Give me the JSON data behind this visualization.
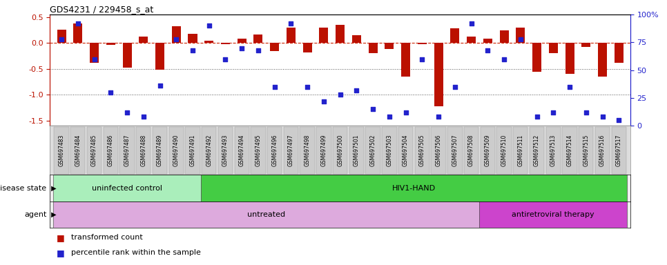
{
  "title": "GDS4231 / 229458_s_at",
  "samples": [
    "GSM697483",
    "GSM697484",
    "GSM697485",
    "GSM697486",
    "GSM697487",
    "GSM697488",
    "GSM697489",
    "GSM697490",
    "GSM697491",
    "GSM697492",
    "GSM697493",
    "GSM697494",
    "GSM697495",
    "GSM697496",
    "GSM697497",
    "GSM697498",
    "GSM697499",
    "GSM697500",
    "GSM697501",
    "GSM697502",
    "GSM697503",
    "GSM697504",
    "GSM697505",
    "GSM697506",
    "GSM697507",
    "GSM697508",
    "GSM697509",
    "GSM697510",
    "GSM697511",
    "GSM697512",
    "GSM697513",
    "GSM697514",
    "GSM697515",
    "GSM697516",
    "GSM697517"
  ],
  "bar_values": [
    0.26,
    0.38,
    -0.38,
    -0.04,
    -0.48,
    0.12,
    -0.52,
    0.32,
    0.18,
    0.05,
    -0.02,
    0.08,
    0.17,
    -0.15,
    0.3,
    -0.18,
    0.3,
    0.35,
    0.15,
    -0.2,
    -0.12,
    -0.65,
    -0.02,
    -1.22,
    0.28,
    0.12,
    0.08,
    0.25,
    0.3,
    -0.55,
    -0.2,
    -0.6,
    -0.08,
    -0.65,
    -0.38
  ],
  "percentile_values": [
    78,
    92,
    60,
    30,
    12,
    8,
    36,
    78,
    68,
    90,
    60,
    70,
    68,
    35,
    92,
    35,
    22,
    28,
    32,
    15,
    8,
    12,
    60,
    8,
    35,
    92,
    68,
    60,
    78,
    8,
    12,
    35,
    12,
    8,
    5
  ],
  "ylim_left": [
    -1.6,
    0.55
  ],
  "yticks_left": [
    -1.5,
    -1.0,
    -0.5,
    0.0,
    0.5
  ],
  "yticks_right_pct": [
    0,
    25,
    50,
    75,
    100
  ],
  "bar_color": "#bb1100",
  "dot_color": "#2222cc",
  "dashed_line_color": "#cc2200",
  "dotted_line_color": "#555555",
  "disease_state_groups": [
    {
      "label": "uninfected control",
      "start": 0,
      "end": 9,
      "color": "#aaeebb"
    },
    {
      "label": "HIV1-HAND",
      "start": 9,
      "end": 35,
      "color": "#44cc44"
    }
  ],
  "agent_groups": [
    {
      "label": "untreated",
      "start": 0,
      "end": 26,
      "color": "#ddaadd"
    },
    {
      "label": "antiretroviral therapy",
      "start": 26,
      "end": 35,
      "color": "#cc44cc"
    }
  ],
  "legend_items": [
    {
      "label": "transformed count",
      "color": "#bb1100"
    },
    {
      "label": "percentile rank within the sample",
      "color": "#2222cc"
    }
  ],
  "disease_state_label": "disease state",
  "agent_label": "agent",
  "xtick_bg": "#cccccc",
  "xtick_border": "#888888"
}
